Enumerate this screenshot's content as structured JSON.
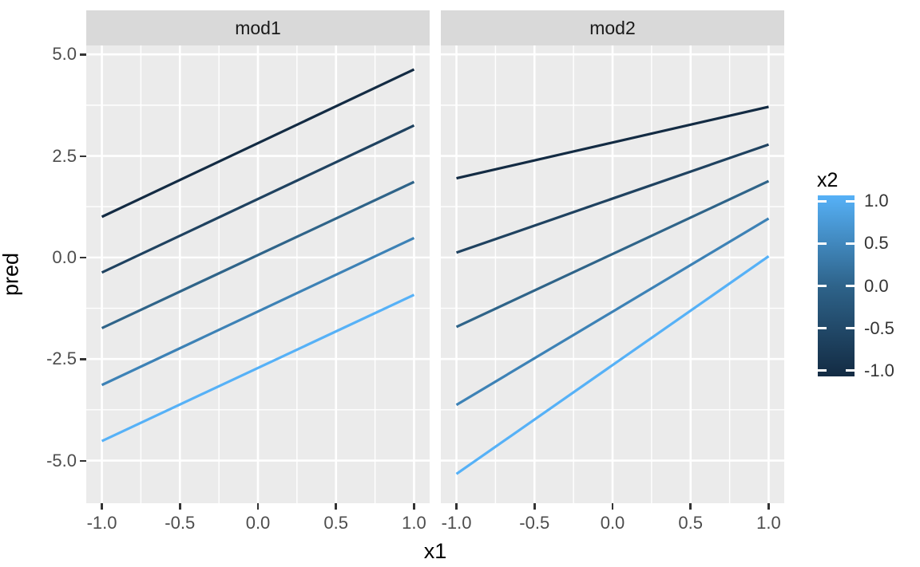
{
  "chart_data": {
    "type": "line",
    "xlabel": "x1",
    "ylabel": "pred",
    "panel_bg": "#EBEBEB",
    "strip_bg": "#D9D9D9",
    "grid_color": "#FFFFFF",
    "xlim": [
      -1.1,
      1.1
    ],
    "ylim": [
      -6.05,
      5.22
    ],
    "x_ticks": [
      {
        "label": "-1.0",
        "value": -1.0
      },
      {
        "label": "-0.5",
        "value": -0.5
      },
      {
        "label": "0.0",
        "value": 0.0
      },
      {
        "label": "0.5",
        "value": 0.5
      },
      {
        "label": "1.0",
        "value": 1.0
      }
    ],
    "y_ticks": [
      {
        "label": "5.0",
        "value": 5.0
      },
      {
        "label": "2.5",
        "value": 2.5
      },
      {
        "label": "0.0",
        "value": 0.0
      },
      {
        "label": "-2.5",
        "value": -2.5
      },
      {
        "label": "-5.0",
        "value": -5.0
      }
    ],
    "x_minor": [
      -0.75,
      -0.25,
      0.25,
      0.75
    ],
    "y_minor": [
      3.75,
      1.25,
      -1.25,
      -3.75
    ],
    "facets": [
      {
        "label": "mod1",
        "series": [
          {
            "name": "x2 = -1.0",
            "x2": -1.0,
            "color": "#132B43",
            "x": [
              -1,
              1
            ],
            "y": [
              1.0,
              4.63
            ]
          },
          {
            "name": "x2 = -0.5",
            "x2": -0.5,
            "color": "#1F4260",
            "x": [
              -1,
              1
            ],
            "y": [
              -0.37,
              3.25
            ]
          },
          {
            "name": "x2 = 0.0",
            "x2": 0.0,
            "color": "#2F6489",
            "x": [
              -1,
              1
            ],
            "y": [
              -1.74,
              1.86
            ]
          },
          {
            "name": "x2 = 0.5",
            "x2": 0.5,
            "color": "#3D82B6",
            "x": [
              -1,
              1
            ],
            "y": [
              -3.14,
              0.48
            ]
          },
          {
            "name": "x2 = 1.0",
            "x2": 1.0,
            "color": "#56B1F7",
            "x": [
              -1,
              1
            ],
            "y": [
              -4.52,
              -0.92
            ]
          }
        ]
      },
      {
        "label": "mod2",
        "series": [
          {
            "name": "x2 = -1.0",
            "x2": -1.0,
            "color": "#132B43",
            "x": [
              -1,
              1
            ],
            "y": [
              1.95,
              3.71
            ]
          },
          {
            "name": "x2 = -0.5",
            "x2": -0.5,
            "color": "#1F4260",
            "x": [
              -1,
              1
            ],
            "y": [
              0.12,
              2.78
            ]
          },
          {
            "name": "x2 = 0.0",
            "x2": 0.0,
            "color": "#2F6489",
            "x": [
              -1,
              1
            ],
            "y": [
              -1.71,
              1.88
            ]
          },
          {
            "name": "x2 = 0.5",
            "x2": 0.5,
            "color": "#3D82B6",
            "x": [
              -1,
              1
            ],
            "y": [
              -3.63,
              0.96
            ]
          },
          {
            "name": "x2 = 1.0",
            "x2": 1.0,
            "color": "#56B1F7",
            "x": [
              -1,
              1
            ],
            "y": [
              -5.33,
              0.03
            ]
          }
        ]
      }
    ],
    "legend": {
      "title": "x2",
      "gradient_low": "#132B43",
      "gradient_mid": "#2E638A",
      "gradient_high": "#56B1F7",
      "bar_range": [
        -1.07,
        1.07
      ],
      "ticks": [
        {
          "label": "1.0",
          "value": 1.0
        },
        {
          "label": "0.5",
          "value": 0.5
        },
        {
          "label": "0.0",
          "value": 0.0
        },
        {
          "label": "-0.5",
          "value": -0.5
        },
        {
          "label": "-1.0",
          "value": -1.0
        }
      ],
      "position": "right"
    }
  }
}
